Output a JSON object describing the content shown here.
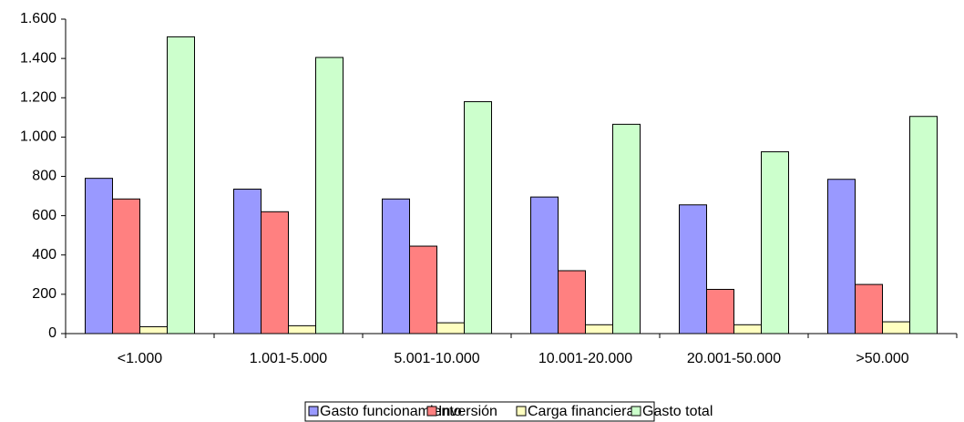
{
  "chart_data": {
    "type": "bar",
    "categories": [
      "<1.000",
      "1.001-5.000",
      "5.001-10.000",
      "10.001-20.000",
      "20.001-50.000",
      ">50.000"
    ],
    "series": [
      {
        "name": "Gasto funcionamiento",
        "color": "#9999ff",
        "values": [
          790,
          735,
          685,
          695,
          655,
          785
        ]
      },
      {
        "name": "Inversión",
        "color": "#ff8080",
        "values": [
          685,
          620,
          445,
          320,
          225,
          250
        ]
      },
      {
        "name": "Carga financiera",
        "color": "#ffffc0",
        "values": [
          35,
          40,
          55,
          45,
          45,
          60
        ]
      },
      {
        "name": "Gasto total",
        "color": "#ccffcc",
        "values": [
          1510,
          1405,
          1180,
          1065,
          925,
          1105
        ]
      }
    ],
    "ylim": [
      0,
      1600
    ],
    "yticks": [
      0,
      200,
      400,
      600,
      800,
      {
        "value": 1000,
        "label": "1.000"
      },
      {
        "value": 1200,
        "label": "1.200"
      },
      {
        "value": 1400,
        "label": "1.400"
      },
      {
        "value": 1600,
        "label": "1.600"
      }
    ],
    "grid": false,
    "legend": "bottom"
  }
}
